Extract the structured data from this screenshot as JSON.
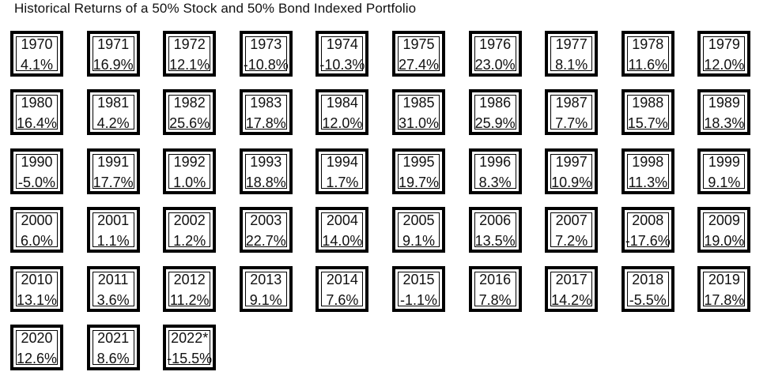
{
  "chart_data": {
    "type": "table",
    "title": "Historical Returns of a 50% Stock and 50% Bond Indexed Portfolio",
    "categories": [
      "1970",
      "1971",
      "1972",
      "1973",
      "1974",
      "1975",
      "1976",
      "1977",
      "1978",
      "1979",
      "1980",
      "1981",
      "1982",
      "1983",
      "1984",
      "1985",
      "1986",
      "1987",
      "1988",
      "1989",
      "1990",
      "1991",
      "1992",
      "1993",
      "1994",
      "1995",
      "1996",
      "1997",
      "1998",
      "1999",
      "2000",
      "2001",
      "2002",
      "2003",
      "2004",
      "2005",
      "2006",
      "2007",
      "2008",
      "2009",
      "2010",
      "2011",
      "2012",
      "2013",
      "2014",
      "2015",
      "2016",
      "2017",
      "2018",
      "2019",
      "2020",
      "2021",
      "2022*"
    ],
    "labels": [
      "4.1%",
      "16.9%",
      "12.1%",
      "-10.8%",
      "-10.3%",
      "27.4%",
      "23.0%",
      "8.1%",
      "11.6%",
      "12.0%",
      "16.4%",
      "4.2%",
      "25.6%",
      "17.8%",
      "12.0%",
      "31.0%",
      "25.9%",
      "7.7%",
      "15.7%",
      "18.3%",
      "-5.0%",
      "17.7%",
      "1.0%",
      "18.8%",
      "1.7%",
      "19.7%",
      "8.3%",
      "10.9%",
      "11.3%",
      "9.1%",
      "6.0%",
      "1.1%",
      "1.2%",
      "22.7%",
      "14.0%",
      "9.1%",
      "13.5%",
      "7.2%",
      "-17.6%",
      "19.0%",
      "13.1%",
      "3.6%",
      "11.2%",
      "9.1%",
      "7.6%",
      "-1.1%",
      "7.8%",
      "14.2%",
      "-5.5%",
      "17.8%",
      "12.6%",
      "8.6%",
      "-15.5%"
    ],
    "values": [
      4.1,
      16.9,
      12.1,
      -10.8,
      -10.3,
      27.4,
      23.0,
      8.1,
      11.6,
      12.0,
      16.4,
      4.2,
      25.6,
      17.8,
      12.0,
      31.0,
      25.9,
      7.7,
      15.7,
      18.3,
      -5.0,
      17.7,
      1.0,
      18.8,
      1.7,
      19.7,
      8.3,
      10.9,
      11.3,
      9.1,
      6.0,
      1.1,
      1.2,
      22.7,
      14.0,
      9.1,
      13.5,
      7.2,
      -17.6,
      19.0,
      13.1,
      3.6,
      11.2,
      9.1,
      7.6,
      -1.1,
      7.8,
      14.2,
      -5.5,
      17.8,
      12.6,
      8.6,
      -15.5
    ]
  }
}
